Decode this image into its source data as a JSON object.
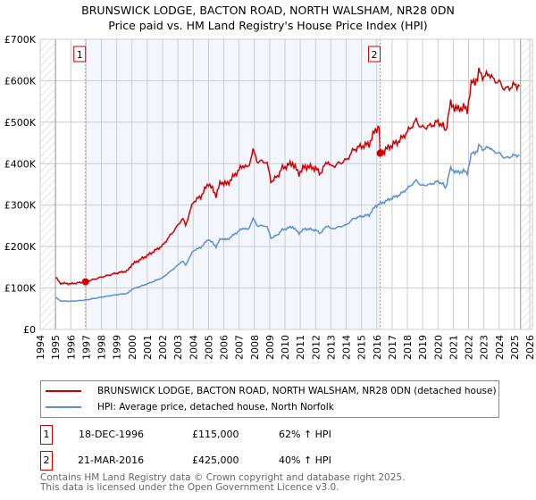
{
  "chart_data": {
    "type": "line",
    "title": "BRUNSWICK LODGE, BACTON ROAD, NORTH WALSHAM, NR28 0DN",
    "subtitle": "Price paid vs. HM Land Registry's House Price Index (HPI)",
    "xlim": [
      1994,
      2026
    ],
    "ylim": [
      0,
      700000
    ],
    "yticks": [
      0,
      100000,
      200000,
      300000,
      400000,
      500000,
      600000,
      700000
    ],
    "ytick_labels": [
      "£0",
      "£100K",
      "£200K",
      "£300K",
      "£400K",
      "£500K",
      "£600K",
      "£700K"
    ],
    "xticks": [
      1994,
      1995,
      1996,
      1997,
      1998,
      1999,
      2000,
      2001,
      2002,
      2003,
      2004,
      2005,
      2006,
      2007,
      2008,
      2009,
      2010,
      2011,
      2012,
      2013,
      2014,
      2015,
      2016,
      2017,
      2018,
      2019,
      2020,
      2021,
      2022,
      2023,
      2024,
      2025,
      2026
    ],
    "grid": true,
    "data_range": [
      1995,
      2025.4
    ],
    "series": [
      {
        "name": "BRUNSWICK LODGE, BACTON ROAD, NORTH WALSHAM, NR28 0DN (detached house)",
        "color": "#cc0000"
      },
      {
        "name": "HPI: Average price, detached house, North Norfolk",
        "color": "#5b8fd0",
        "x": [
          1995,
          1995.3,
          1996,
          1996.96,
          1998,
          1999,
          1999.7,
          2000,
          2001,
          2002,
          2003,
          2003.3,
          2003.5,
          2004,
          2004.5,
          2005,
          2005.5,
          2005.8,
          2006.2,
          2007,
          2007.3,
          2007.6,
          2007.9,
          2008.2,
          2008.8,
          2009.1,
          2009.5,
          2009.8,
          2010.5,
          2010.9,
          2011.3,
          2012,
          2012.3,
          2012.8,
          2013,
          2014,
          2014.5,
          2015,
          2015.5,
          2015.9,
          2016.22,
          2017,
          2017.5,
          2018,
          2018.6,
          2018.9,
          2019.5,
          2020,
          2020.3,
          2020.5,
          2020.8,
          2021.3,
          2021.7,
          2021.9,
          2022.2,
          2022.6,
          2022.7,
          2023,
          2023.3,
          2023.6,
          2024,
          2024.4,
          2025,
          2025.4
        ],
        "y": [
          78000,
          69000,
          68000,
          71000,
          78000,
          84000,
          87000,
          97000,
          110000,
          125000,
          155000,
          166000,
          155000,
          190000,
          198000,
          218000,
          200000,
          220000,
          216000,
          238000,
          245000,
          240000,
          268000,
          250000,
          250000,
          220000,
          228000,
          240000,
          248000,
          232000,
          243000,
          240000,
          232000,
          252000,
          242000,
          252000,
          268000,
          273000,
          276000,
          297000,
          303000,
          317000,
          325000,
          340000,
          360000,
          347000,
          350000,
          357000,
          352000,
          340000,
          388000,
          378000,
          383000,
          375000,
          425000,
          430000,
          447000,
          432000,
          442000,
          430000,
          425000,
          413000,
          420000,
          420000
        ]
      }
    ],
    "sales": [
      {
        "label": "1",
        "x": 1996.96,
        "price": 115000,
        "date": "18-DEC-1996",
        "price_text": "£115,000",
        "hpi_text": "62% ↑ HPI"
      },
      {
        "label": "2",
        "x": 2016.22,
        "price": 425000,
        "date": "21-MAR-2016",
        "price_text": "£425,000",
        "hpi_text": "40% ↑ HPI"
      }
    ]
  },
  "footer": {
    "line1": "Contains HM Land Registry data © Crown copyright and database right 2025.",
    "line2": "This data is licensed under the Open Government Licence v3.0."
  }
}
